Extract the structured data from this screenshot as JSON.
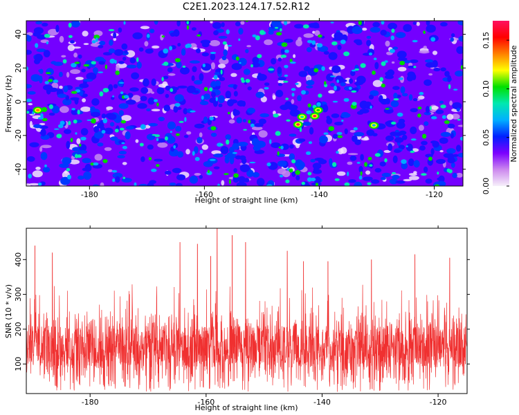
{
  "title": "C2E1.2023.124.17.52.R12",
  "chart_data": [
    {
      "type": "heatmap",
      "xlabel": "Height of straight line (km)",
      "ylabel": "Frequency (Hz)",
      "xlim": [
        -191,
        -115
      ],
      "ylim": [
        -50,
        48
      ],
      "xticks": [
        -180,
        -160,
        -140,
        -120
      ],
      "yticks": [
        -40,
        -20,
        0,
        20,
        40
      ],
      "colorbar": {
        "label": "Normalized spectral amplitude",
        "range": [
          0.0,
          0.17
        ],
        "ticks": [
          "0.00",
          "0.05",
          "0.10",
          "0.15"
        ],
        "tick_values": [
          0.0,
          0.05,
          0.1,
          0.15
        ],
        "colors": [
          "#f6f0fa",
          "#cc88ee",
          "#7b00ff",
          "#0020ff",
          "#00b0ff",
          "#00e8b0",
          "#00e000",
          "#ffff00",
          "#ff8000",
          "#ff0000",
          "#ff1060"
        ]
      },
      "hotspots": [
        {
          "x": -140.8,
          "y": -8.5,
          "value": 0.17
        },
        {
          "x": -143.7,
          "y": -13.5,
          "value": 0.17
        },
        {
          "x": -140.2,
          "y": -5.0,
          "value": 0.1
        },
        {
          "x": -189.0,
          "y": -5.0,
          "value": 0.13
        },
        {
          "x": -130.5,
          "y": -14.0,
          "value": 0.06
        },
        {
          "x": -143.0,
          "y": -9.0,
          "value": 0.09
        }
      ]
    },
    {
      "type": "line",
      "series_name": "SNR",
      "color": "#f03030",
      "xlabel": "Height of straight line (km)",
      "ylabel": "SNR (10 * v/v)",
      "xlim": [
        -191,
        -115
      ],
      "ylim": [
        15,
        490
      ],
      "xticks": [
        -180,
        -160,
        -140,
        -120
      ],
      "yticks": [
        100,
        200,
        300,
        400
      ],
      "mean": 150,
      "typical_range": [
        20,
        330
      ],
      "peaks": [
        {
          "x": -189.5,
          "y": 440
        },
        {
          "x": -186.5,
          "y": 420
        },
        {
          "x": -164.5,
          "y": 450
        },
        {
          "x": -161.5,
          "y": 445
        },
        {
          "x": -159.2,
          "y": 410
        },
        {
          "x": -158.1,
          "y": 490
        },
        {
          "x": -155.5,
          "y": 470
        },
        {
          "x": -153.2,
          "y": 450
        },
        {
          "x": -146.0,
          "y": 425
        },
        {
          "x": -143.2,
          "y": 395
        },
        {
          "x": -139.0,
          "y": 395
        },
        {
          "x": -131.5,
          "y": 400
        },
        {
          "x": -124.0,
          "y": 415
        },
        {
          "x": -118.0,
          "y": 405
        }
      ]
    }
  ]
}
